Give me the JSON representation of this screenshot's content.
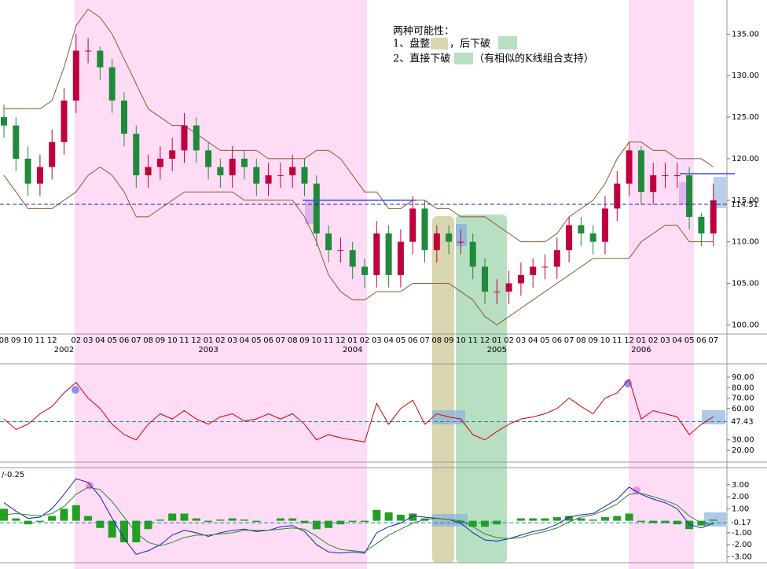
{
  "chart_data": [
    {
      "type": "candlestick",
      "categories": [
        "08",
        "09",
        "10",
        "11",
        "12",
        null,
        "02",
        "03",
        "04",
        "05",
        "06",
        "07",
        "08",
        "09",
        "10",
        "11",
        "12",
        "01",
        "02",
        "03",
        "04",
        "05",
        "06",
        "07",
        "08",
        "09",
        "10",
        "11",
        "12",
        "01",
        "02",
        "03",
        "04",
        "05",
        "06",
        "07",
        "08",
        "09",
        "10",
        "11",
        "12",
        "01",
        "02",
        "03",
        "04",
        "05",
        "06",
        "07",
        "08",
        "09",
        "10",
        "11",
        "12",
        "01",
        "02",
        "03",
        "04",
        "05",
        "06",
        "07"
      ],
      "year_labels": [
        "2002",
        "2003",
        "2004",
        "2005",
        "2006"
      ],
      "open": [
        125,
        124,
        120,
        117,
        119,
        122,
        127,
        133,
        133,
        131,
        127,
        123,
        118,
        119,
        120,
        121,
        124,
        121,
        119,
        118,
        120,
        119,
        117,
        118,
        118,
        119,
        117,
        111,
        109,
        109,
        107,
        106,
        111,
        106,
        110,
        114,
        109,
        111,
        110,
        110,
        107,
        104,
        104,
        105,
        106,
        107,
        107,
        109,
        112,
        111,
        110,
        114,
        117,
        121,
        116,
        118,
        118,
        118,
        113,
        111
      ],
      "close": [
        124,
        120,
        117,
        119,
        122,
        127,
        133,
        133,
        131,
        127,
        123,
        118,
        119,
        120,
        121,
        124,
        121,
        119,
        118,
        120,
        119,
        117,
        118,
        118,
        119,
        117,
        111,
        109,
        109,
        107,
        106,
        111,
        106,
        110,
        114,
        109,
        111,
        110,
        110,
        107,
        104,
        104,
        105,
        106,
        107,
        107,
        109,
        112,
        111,
        110,
        114,
        117,
        121,
        116,
        118,
        118,
        118,
        113,
        111,
        115
      ],
      "high": [
        126.5,
        125,
        121.5,
        120.5,
        123.5,
        128.5,
        135,
        134.5,
        133.5,
        132,
        128,
        124,
        120.5,
        121.5,
        122.5,
        125.5,
        125,
        122,
        120,
        121.5,
        121,
        120,
        119.5,
        119.5,
        120.5,
        120,
        118,
        112,
        110.5,
        110,
        108,
        112.5,
        112,
        111.5,
        115.5,
        115,
        112,
        112,
        111.5,
        111,
        108,
        105.5,
        106.5,
        107.5,
        108,
        108.5,
        110.5,
        113,
        113,
        112,
        115.5,
        118.5,
        122,
        121.5,
        119.5,
        119.5,
        119.5,
        119,
        113.5,
        117
      ],
      "low": [
        122.5,
        118.5,
        115.5,
        115.5,
        117.5,
        120.5,
        125.5,
        131.5,
        129.5,
        125.5,
        121.5,
        116.5,
        116.5,
        117.5,
        118.5,
        119.5,
        119.5,
        117.5,
        116.5,
        116.5,
        117.5,
        115.5,
        115.5,
        116.5,
        116.5,
        115.5,
        109.5,
        107.5,
        107.5,
        105.5,
        104.5,
        104.5,
        104.5,
        104.5,
        108.5,
        107.5,
        107.5,
        108.5,
        108.5,
        105.5,
        102.5,
        102.5,
        102.5,
        103.5,
        104.5,
        105.5,
        105.5,
        107.5,
        109.5,
        108.5,
        108.5,
        112.5,
        115.5,
        114.5,
        114.5,
        116.5,
        116.5,
        111.5,
        109.5,
        109.5
      ],
      "up_color": "#c0003c",
      "down_color": "#1f8a3a",
      "series": [
        {
          "name": "upper",
          "color": "#8b5a2b",
          "values": [
            126,
            126,
            126,
            126,
            127,
            131,
            136,
            138,
            137,
            135,
            132,
            129,
            126,
            125,
            124,
            124,
            123,
            122,
            121,
            121,
            121,
            121,
            120,
            120,
            120,
            120,
            121,
            121,
            120,
            118,
            116,
            116,
            114,
            114,
            115,
            115,
            114,
            114,
            113,
            113,
            113,
            112,
            111,
            110,
            110,
            110,
            111,
            113,
            114,
            115,
            117,
            120,
            122,
            122,
            121,
            121,
            120,
            120,
            120,
            119
          ]
        },
        {
          "name": "lower",
          "color": "#8b5a2b",
          "values": [
            118,
            116,
            114,
            114,
            114,
            115,
            116,
            118,
            119,
            118,
            116,
            113,
            113,
            114,
            115,
            116,
            116,
            116,
            116,
            116,
            115,
            115,
            115,
            115,
            115,
            113,
            110,
            106,
            104,
            103,
            103,
            104,
            104,
            104,
            105,
            105,
            105,
            105,
            104,
            103,
            101,
            100,
            101,
            102,
            103,
            104,
            105,
            106,
            107,
            108,
            108,
            108,
            108,
            110,
            111,
            112,
            112,
            110,
            110,
            110
          ]
        }
      ],
      "levels": [
        115.0,
        118.2
      ],
      "ref": {
        "value": 114.51,
        "label": "114.51",
        "color": "#2020a0"
      },
      "annotations": [
        "两种可能性：",
        "1、盘整",
        "，后下破",
        "2、直接下破",
        "（有相似的K线组合支持）"
      ],
      "ylim": [
        98.9,
        139.1
      ],
      "yticks": [
        {
          "value": 100,
          "label": "100.00"
        },
        {
          "value": 105,
          "label": "105.00"
        },
        {
          "value": 110,
          "label": "110.00"
        },
        {
          "value": 115,
          "label": "115.00"
        },
        {
          "value": 120,
          "label": "120.00"
        },
        {
          "value": 125,
          "label": "125.00"
        },
        {
          "value": 130,
          "label": "130.00"
        },
        {
          "value": 135,
          "label": "135.00"
        }
      ]
    },
    {
      "type": "line",
      "series": [
        {
          "name": "RSI",
          "color": "#d00000",
          "values": [
            50,
            40,
            45,
            55,
            62,
            75,
            85,
            70,
            60,
            45,
            35,
            30,
            45,
            55,
            50,
            58,
            50,
            45,
            52,
            55,
            48,
            50,
            55,
            50,
            55,
            45,
            30,
            35,
            32,
            30,
            28,
            65,
            45,
            60,
            68,
            45,
            55,
            52,
            50,
            35,
            30,
            38,
            45,
            50,
            52,
            55,
            60,
            70,
            62,
            55,
            70,
            75,
            88,
            50,
            58,
            55,
            52,
            35,
            45,
            52
          ]
        }
      ],
      "ref": {
        "value": 47.43,
        "label": "47.43",
        "color": "#1a8a8a"
      },
      "ylim": [
        11,
        100.5
      ],
      "yticks": [
        {
          "value": 20,
          "label": "20.00"
        },
        {
          "value": 30,
          "label": "30.00"
        },
        {
          "value": 60,
          "label": "60.00"
        },
        {
          "value": 70,
          "label": "70.00"
        },
        {
          "value": 80,
          "label": "80.00"
        },
        {
          "value": 90,
          "label": "90.00"
        }
      ]
    },
    {
      "type": "macd",
      "title": "/-0.25",
      "bars": {
        "color": "#22a022",
        "values": [
          1.0,
          0.2,
          -0.3,
          -0.1,
          0.4,
          1.0,
          1.3,
          0.4,
          -0.6,
          -1.4,
          -1.8,
          -1.8,
          -0.7,
          0.1,
          0.6,
          0.6,
          0.2,
          -0.1,
          0.1,
          0.2,
          0.1,
          -0.1,
          0,
          0.2,
          0.2,
          -0.2,
          -0.7,
          -0.6,
          -0.3,
          -0.1,
          -0.1,
          0.9,
          0.7,
          0.5,
          0.6,
          0.2,
          0,
          0,
          -0.2,
          -0.5,
          -0.5,
          -0.3,
          0,
          0.2,
          0.2,
          0.2,
          0.3,
          0.4,
          0.2,
          0.1,
          0.3,
          0.4,
          0.6,
          -0.1,
          -0.2,
          -0.2,
          -0.3,
          -0.7,
          -0.4,
          0.1
        ]
      },
      "series": [
        {
          "name": "DIF",
          "color": "#1020c0",
          "values": [
            1.5,
            0.8,
            0.2,
            0.3,
            1.0,
            2.2,
            3.5,
            3.2,
            2.0,
            0.2,
            -1.5,
            -2.8,
            -2.5,
            -2.0,
            -1.2,
            -0.8,
            -1.0,
            -1.3,
            -1.0,
            -0.8,
            -0.7,
            -0.9,
            -0.8,
            -0.5,
            -0.4,
            -0.9,
            -2.0,
            -2.6,
            -2.7,
            -2.6,
            -2.7,
            -1.0,
            -0.5,
            -0.2,
            0.4,
            0.3,
            0.2,
            0.1,
            -0.2,
            -1.0,
            -1.6,
            -1.7,
            -1.5,
            -1.2,
            -0.9,
            -0.7,
            -0.3,
            0.3,
            0.5,
            0.6,
            1.2,
            1.8,
            2.8,
            2.2,
            1.8,
            1.5,
            1.0,
            -0.3,
            -0.6,
            -0.2
          ]
        },
        {
          "name": "DEA",
          "color": "#2a8a2a",
          "values": [
            0.5,
            0.6,
            0.5,
            0.4,
            0.6,
            1.2,
            2.2,
            2.8,
            2.6,
            1.6,
            0.3,
            -1.0,
            -1.8,
            -2.1,
            -1.8,
            -1.4,
            -1.2,
            -1.2,
            -1.1,
            -1.0,
            -0.8,
            -0.8,
            -0.8,
            -0.7,
            -0.6,
            -0.7,
            -1.3,
            -2.0,
            -2.4,
            -2.5,
            -2.6,
            -1.9,
            -1.2,
            -0.7,
            -0.2,
            0.1,
            0.2,
            0.1,
            0.0,
            -0.5,
            -1.1,
            -1.4,
            -1.5,
            -1.4,
            -1.1,
            -0.9,
            -0.6,
            -0.1,
            0.3,
            0.5,
            0.9,
            1.4,
            2.2,
            2.3,
            2.0,
            1.7,
            1.3,
            0.4,
            -0.2,
            -0.3
          ]
        }
      ],
      "ref": {
        "value": -0.17,
        "label": "-0.17",
        "color": "#1a8a8a"
      },
      "ylim": [
        -3.5,
        4.3
      ],
      "yticks": [
        {
          "value": -3,
          "label": "-3.00"
        },
        {
          "value": -2,
          "label": "-2.00"
        },
        {
          "value": -1,
          "label": "-1.00"
        },
        {
          "value": 1,
          "label": "1.00"
        },
        {
          "value": 2,
          "label": "2.00"
        },
        {
          "value": 3,
          "label": "3.00"
        }
      ]
    }
  ]
}
